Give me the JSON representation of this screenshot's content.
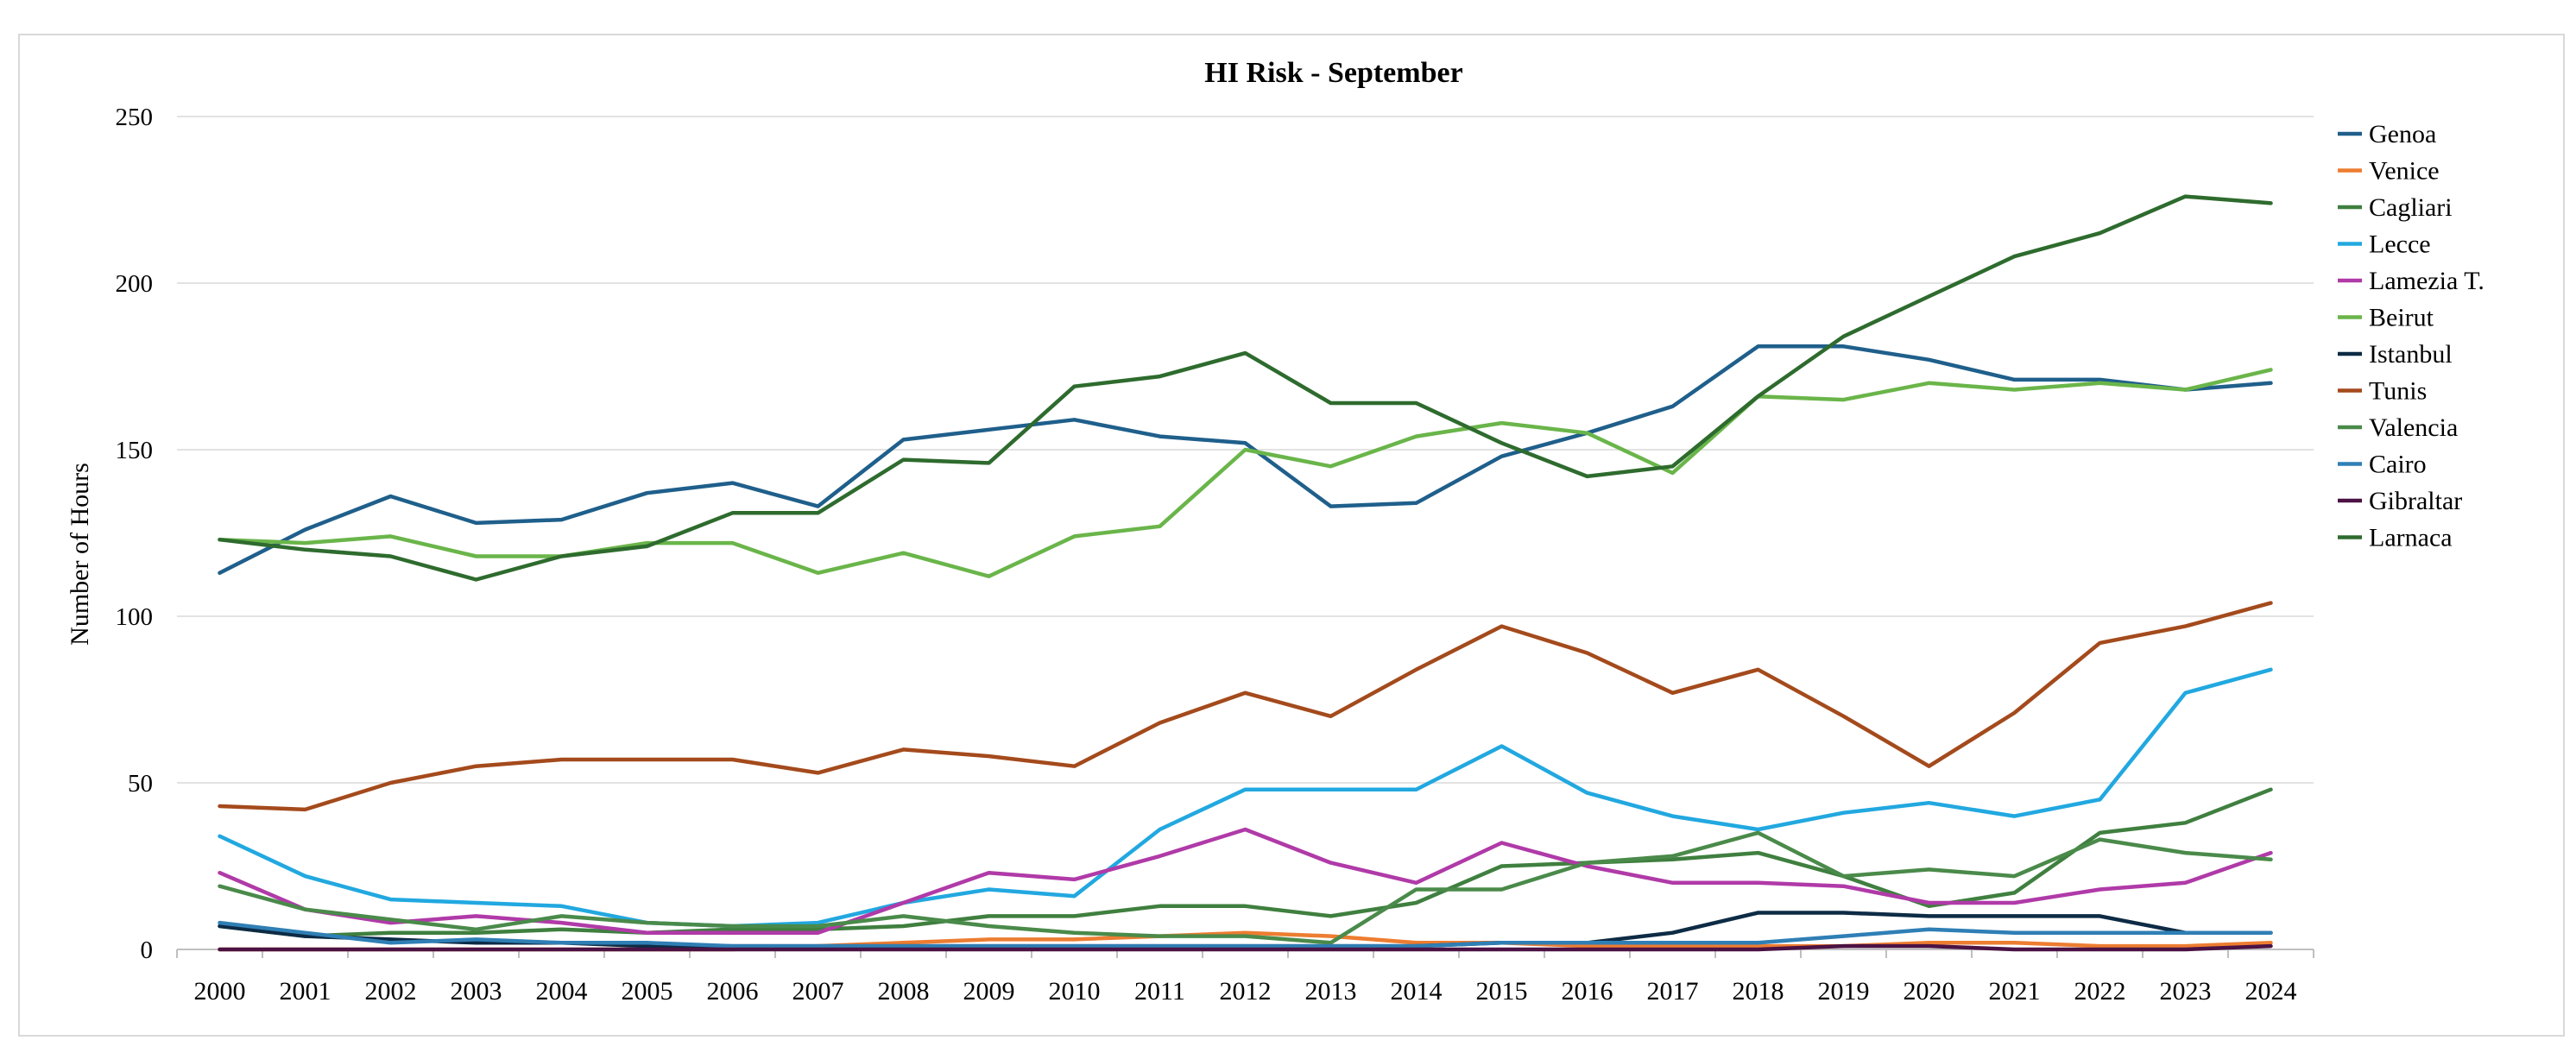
{
  "chart_data": {
    "type": "line",
    "title": "HI Risk - September",
    "xlabel": "",
    "ylabel": "Number of Hours",
    "ylim": [
      0,
      250
    ],
    "yticks": [
      0,
      50,
      100,
      150,
      200,
      250
    ],
    "grid": true,
    "legend_position": "right",
    "categories": [
      "2000",
      "2001",
      "2002",
      "2003",
      "2004",
      "2005",
      "2006",
      "2007",
      "2008",
      "2009",
      "2010",
      "2011",
      "2012",
      "2013",
      "2014",
      "2015",
      "2016",
      "2017",
      "2018",
      "2019",
      "2020",
      "2021",
      "2022",
      "2023",
      "2024"
    ],
    "series": [
      {
        "name": "Genoa",
        "color": "#1f5f8b",
        "values": [
          113,
          126,
          136,
          128,
          129,
          137,
          140,
          133,
          153,
          156,
          159,
          154,
          152,
          133,
          134,
          148,
          155,
          163,
          181,
          181,
          177,
          171,
          171,
          168,
          170
        ]
      },
      {
        "name": "Venice",
        "color": "#ed7d31",
        "values": [
          0,
          0,
          0,
          0,
          0,
          0,
          0,
          1,
          2,
          3,
          3,
          4,
          5,
          4,
          2,
          2,
          1,
          1,
          1,
          1,
          2,
          2,
          1,
          1,
          2
        ]
      },
      {
        "name": "Cagliari",
        "color": "#3f7f3f",
        "values": [
          7,
          4,
          5,
          5,
          6,
          5,
          6,
          6,
          7,
          10,
          10,
          13,
          13,
          10,
          14,
          25,
          26,
          27,
          29,
          22,
          13,
          17,
          35,
          38,
          48
        ]
      },
      {
        "name": "Lecce",
        "color": "#22a8e0",
        "values": [
          34,
          22,
          15,
          14,
          13,
          8,
          7,
          8,
          14,
          18,
          16,
          36,
          48,
          48,
          48,
          61,
          47,
          40,
          36,
          41,
          44,
          40,
          45,
          77,
          84
        ]
      },
      {
        "name": "Lamezia T.",
        "color": "#b03aa8",
        "values": [
          23,
          12,
          8,
          10,
          8,
          5,
          5,
          5,
          14,
          23,
          21,
          28,
          36,
          26,
          20,
          32,
          25,
          20,
          20,
          19,
          14,
          14,
          18,
          20,
          29
        ]
      },
      {
        "name": "Beirut",
        "color": "#6ab54a",
        "values": [
          123,
          122,
          124,
          118,
          118,
          122,
          122,
          113,
          119,
          112,
          124,
          127,
          150,
          145,
          154,
          158,
          155,
          143,
          166,
          165,
          170,
          168,
          170,
          168,
          174
        ]
      },
      {
        "name": "Istanbul",
        "color": "#0d2b45",
        "values": [
          7,
          4,
          3,
          2,
          2,
          1,
          1,
          1,
          1,
          1,
          1,
          1,
          1,
          1,
          1,
          2,
          2,
          5,
          11,
          11,
          10,
          10,
          10,
          5,
          5
        ]
      },
      {
        "name": "Tunis",
        "color": "#a44a1c",
        "values": [
          43,
          42,
          50,
          55,
          57,
          57,
          57,
          53,
          60,
          58,
          55,
          68,
          77,
          70,
          84,
          97,
          89,
          77,
          84,
          70,
          55,
          71,
          92,
          97,
          104
        ]
      },
      {
        "name": "Valencia",
        "color": "#4a8a4a",
        "values": [
          19,
          12,
          9,
          6,
          10,
          8,
          7,
          7,
          10,
          7,
          5,
          4,
          4,
          2,
          18,
          18,
          26,
          28,
          35,
          22,
          24,
          22,
          33,
          29,
          27
        ]
      },
      {
        "name": "Cairo",
        "color": "#2f7fb5",
        "values": [
          8,
          5,
          2,
          3,
          2,
          2,
          1,
          1,
          1,
          1,
          1,
          1,
          1,
          1,
          1,
          2,
          2,
          2,
          2,
          4,
          6,
          5,
          5,
          5,
          5
        ]
      },
      {
        "name": "Gibraltar",
        "color": "#4b1244",
        "values": [
          0,
          0,
          0,
          0,
          0,
          0,
          0,
          0,
          0,
          0,
          0,
          0,
          0,
          0,
          0,
          0,
          0,
          0,
          0,
          1,
          1,
          0,
          0,
          0,
          1
        ]
      },
      {
        "name": "Larnaca",
        "color": "#2e6b2e",
        "values": [
          123,
          120,
          118,
          111,
          118,
          121,
          131,
          131,
          147,
          146,
          169,
          172,
          179,
          164,
          164,
          152,
          142,
          145,
          166,
          184,
          196,
          208,
          215,
          226,
          224
        ]
      }
    ]
  }
}
